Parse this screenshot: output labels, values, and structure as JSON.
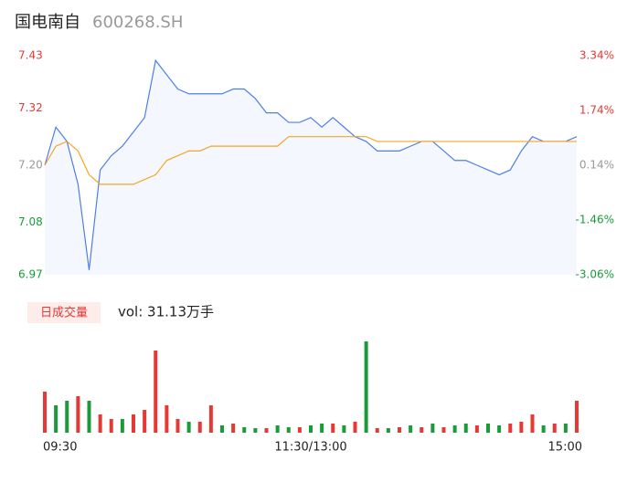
{
  "header": {
    "title": "国电南自",
    "code": "600268.SH"
  },
  "chart_data": [
    {
      "type": "line",
      "x": [
        0,
        5,
        10,
        15,
        20,
        25,
        30,
        35,
        40,
        45,
        50,
        55,
        60,
        65,
        70,
        75,
        80,
        85,
        90,
        95,
        100,
        105,
        110,
        115,
        120,
        125,
        130,
        135,
        140,
        145,
        150,
        155,
        160,
        165,
        170,
        175,
        180,
        185,
        190,
        195,
        200,
        205,
        210,
        215,
        220,
        225,
        230,
        235,
        240
      ],
      "xlim": [
        0,
        240
      ],
      "xticks": [
        {
          "value": 0,
          "label": "09:30"
        },
        {
          "value": 120,
          "label": "11:30/13:00"
        },
        {
          "value": 240,
          "label": "15:00"
        }
      ],
      "ylim": [
        6.97,
        7.43
      ],
      "yticks": [
        7.43,
        7.32,
        {
          "value": 7.2,
          "label": "7.20"
        },
        7.08,
        6.97
      ],
      "ytick_colors": [
        "#e53935",
        "#e53935",
        "#999999",
        "#1a9b3a",
        "#1a9b3a"
      ],
      "y2lim": [
        -3.06,
        3.34
      ],
      "y2ticks": [
        {
          "value": 3.34,
          "label": "3.34%"
        },
        {
          "value": 1.74,
          "label": "1.74%"
        },
        {
          "value": 0.14,
          "label": "0.14%"
        },
        {
          "value": -1.46,
          "label": "-1.46%"
        },
        {
          "value": -3.06,
          "label": "-3.06%"
        }
      ],
      "area_color": "#f4f7fd",
      "series": [
        {
          "color": "#4f7ee8",
          "values": [
            7.2,
            7.28,
            7.25,
            7.16,
            6.98,
            7.19,
            7.22,
            7.24,
            7.27,
            7.3,
            7.42,
            7.39,
            7.36,
            7.35,
            7.35,
            7.35,
            7.35,
            7.36,
            7.36,
            7.34,
            7.31,
            7.31,
            7.29,
            7.29,
            7.3,
            7.28,
            7.3,
            7.28,
            7.26,
            7.25,
            7.23,
            7.23,
            7.23,
            7.24,
            7.25,
            7.25,
            7.23,
            7.21,
            7.21,
            7.2,
            7.19,
            7.18,
            7.19,
            7.23,
            7.26,
            7.25,
            7.25,
            7.25,
            7.26
          ]
        },
        {
          "color": "#f5a623",
          "values": [
            7.2,
            7.24,
            7.25,
            7.23,
            7.18,
            7.16,
            7.16,
            7.16,
            7.16,
            7.17,
            7.18,
            7.21,
            7.22,
            7.23,
            7.23,
            7.24,
            7.24,
            7.24,
            7.24,
            7.24,
            7.24,
            7.24,
            7.26,
            7.26,
            7.26,
            7.26,
            7.26,
            7.26,
            7.26,
            7.26,
            7.25,
            7.25,
            7.25,
            7.25,
            7.25,
            7.25,
            7.25,
            7.25,
            7.25,
            7.25,
            7.25,
            7.25,
            7.25,
            7.25,
            7.25,
            7.25,
            7.25,
            7.25,
            7.25
          ]
        }
      ]
    },
    {
      "type": "bar",
      "label": "日成交量",
      "summary": "vol: 31.13万手",
      "ylim": [
        0,
        100000
      ],
      "values": [
        45000,
        30000,
        35000,
        40000,
        35000,
        20000,
        15000,
        15000,
        20000,
        25000,
        90000,
        30000,
        15000,
        12000,
        12000,
        30000,
        8000,
        10000,
        6000,
        5000,
        5000,
        8000,
        6000,
        6000,
        8000,
        10000,
        10000,
        8000,
        12000,
        100000,
        5000,
        5000,
        6000,
        8000,
        6000,
        10000,
        6000,
        8000,
        10000,
        8000,
        10000,
        8000,
        10000,
        12000,
        20000,
        8000,
        10000,
        10000,
        35000
      ],
      "colors": [
        "#e53935",
        "#1a9b3a",
        "#1a9b3a",
        "#e53935",
        "#1a9b3a",
        "#e53935",
        "#e53935",
        "#1a9b3a",
        "#e53935",
        "#e53935",
        "#e53935",
        "#e53935",
        "#e53935",
        "#1a9b3a",
        "#e53935",
        "#e53935",
        "#1a9b3a",
        "#e53935",
        "#1a9b3a",
        "#1a9b3a",
        "#e53935",
        "#1a9b3a",
        "#1a9b3a",
        "#e53935",
        "#1a9b3a",
        "#1a9b3a",
        "#e53935",
        "#1a9b3a",
        "#e53935",
        "#1a9b3a",
        "#e53935",
        "#1a9b3a",
        "#e53935",
        "#1a9b3a",
        "#e53935",
        "#1a9b3a",
        "#e53935",
        "#1a9b3a",
        "#1a9b3a",
        "#e53935",
        "#1a9b3a",
        "#1a9b3a",
        "#e53935",
        "#e53935",
        "#e53935",
        "#1a9b3a",
        "#e53935",
        "#1a9b3a",
        "#e53935"
      ]
    }
  ]
}
